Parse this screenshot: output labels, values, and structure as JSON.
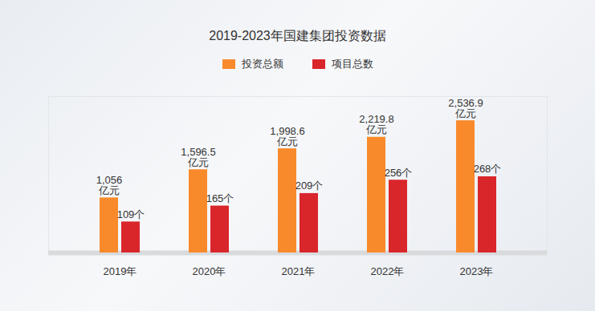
{
  "chart_data": {
    "type": "bar",
    "title": "2019-2023年国建集团投资数据",
    "categories": [
      "2019年",
      "2020年",
      "2021年",
      "2022年",
      "2023年"
    ],
    "series": [
      {
        "name": "投资总额",
        "color": "#f98a2b",
        "values": [
          1056,
          1596.5,
          1998.6,
          2219.8,
          2536.9
        ],
        "value_labels": [
          "1,056\n亿元",
          "1,596.5\n亿元",
          "1,998.6\n亿元",
          "2,219.8\n亿元",
          "2,536.9\n亿元"
        ]
      },
      {
        "name": "项目总数",
        "color": "#d9262b",
        "axis": "y2",
        "values": [
          109,
          165,
          209,
          256,
          268
        ],
        "value_labels": [
          "109个",
          "165个",
          "209个",
          "256个",
          "268个"
        ]
      }
    ],
    "ylim": [
      0,
      3000
    ],
    "y2lim": [
      0,
      550
    ],
    "legend": "top",
    "data_labels": true,
    "tick_labels": "x",
    "grid": false
  }
}
